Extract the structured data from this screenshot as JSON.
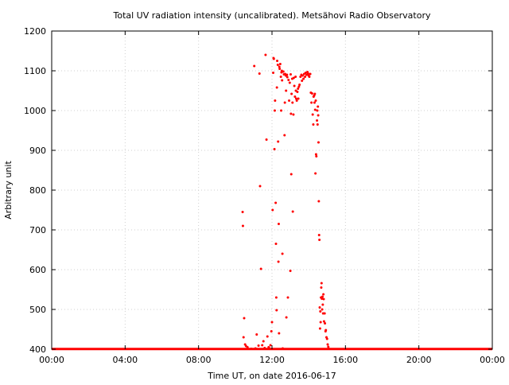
{
  "chart_data": {
    "type": "scatter",
    "title": "Total UV radiation intensity (uncalibrated). Metsähovi Radio Observatory",
    "xlabel": "Time UT, on date 2016-06-17",
    "ylabel": "Arbitrary unit",
    "xlim": [
      "00:00",
      "24:00"
    ],
    "ylim": [
      400,
      1200
    ],
    "grid": true,
    "x_ticks": [
      "00:00",
      "04:00",
      "08:00",
      "12:00",
      "16:00",
      "20:00",
      "00:00"
    ],
    "y_ticks": [
      "400",
      "500",
      "600",
      "700",
      "800",
      "900",
      "1000",
      "1100",
      "1200"
    ],
    "marker_color": "#ff0000",
    "baseline": {
      "from": "00:00",
      "to": "24:00",
      "value": 400
    },
    "points": [
      [
        "10:24",
        745
      ],
      [
        "10:25",
        710
      ],
      [
        "10:27",
        430
      ],
      [
        "10:29",
        478
      ],
      [
        "10:32",
        412
      ],
      [
        "10:35",
        408
      ],
      [
        "10:40",
        405
      ],
      [
        "10:52",
        401
      ],
      [
        "11:02",
        1112
      ],
      [
        "11:06",
        402
      ],
      [
        "11:10",
        437
      ],
      [
        "11:16",
        409
      ],
      [
        "11:19",
        1093
      ],
      [
        "11:21",
        810
      ],
      [
        "11:24",
        602
      ],
      [
        "11:28",
        410
      ],
      [
        "11:32",
        420
      ],
      [
        "11:36",
        403
      ],
      [
        "11:39",
        1140
      ],
      [
        "11:42",
        927
      ],
      [
        "11:45",
        432
      ],
      [
        "11:49",
        405
      ],
      [
        "11:52",
        402
      ],
      [
        "11:55",
        410
      ],
      [
        "11:58",
        445
      ],
      [
        "12:00",
        468
      ],
      [
        "12:02",
        750
      ],
      [
        "12:04",
        1095
      ],
      [
        "12:05",
        1132
      ],
      [
        "12:06",
        1130
      ],
      [
        "12:08",
        903
      ],
      [
        "12:09",
        1000
      ],
      [
        "12:10",
        1025
      ],
      [
        "12:12",
        768
      ],
      [
        "12:13",
        665
      ],
      [
        "12:14",
        530
      ],
      [
        "12:15",
        498
      ],
      [
        "12:16",
        1058
      ],
      [
        "12:17",
        1125
      ],
      [
        "12:19",
        1115
      ],
      [
        "12:20",
        922
      ],
      [
        "12:21",
        620
      ],
      [
        "12:22",
        715
      ],
      [
        "12:23",
        440
      ],
      [
        "12:24",
        1110
      ],
      [
        "12:25",
        1105
      ],
      [
        "12:27",
        1117
      ],
      [
        "12:29",
        1085
      ],
      [
        "12:30",
        1000
      ],
      [
        "12:31",
        1096
      ],
      [
        "12:32",
        1100
      ],
      [
        "12:33",
        1076
      ],
      [
        "12:34",
        640
      ],
      [
        "12:35",
        402
      ],
      [
        "12:37",
        1098
      ],
      [
        "12:39",
        1091
      ],
      [
        "12:41",
        938
      ],
      [
        "12:42",
        1020
      ],
      [
        "12:43",
        1092
      ],
      [
        "12:45",
        1088
      ],
      [
        "12:46",
        1050
      ],
      [
        "12:47",
        480
      ],
      [
        "12:49",
        1090
      ],
      [
        "12:50",
        1084
      ],
      [
        "12:52",
        530
      ],
      [
        "12:54",
        1077
      ],
      [
        "12:56",
        1025
      ],
      [
        "12:58",
        1070
      ],
      [
        "13:00",
        597
      ],
      [
        "13:01",
        1091
      ],
      [
        "13:02",
        992
      ],
      [
        "13:03",
        840
      ],
      [
        "13:04",
        1042
      ],
      [
        "13:06",
        1080
      ],
      [
        "13:07",
        1020
      ],
      [
        "13:08",
        746
      ],
      [
        "13:10",
        990
      ],
      [
        "13:11",
        1082
      ],
      [
        "13:13",
        1062
      ],
      [
        "13:15",
        1035
      ],
      [
        "13:17",
        1085
      ],
      [
        "13:18",
        1050
      ],
      [
        "13:19",
        1030
      ],
      [
        "13:21",
        1025
      ],
      [
        "13:23",
        1047
      ],
      [
        "13:25",
        1055
      ],
      [
        "13:26",
        1030
      ],
      [
        "13:28",
        1060
      ],
      [
        "13:30",
        1065
      ],
      [
        "13:33",
        1085
      ],
      [
        "13:36",
        1090
      ],
      [
        "13:38",
        1075
      ],
      [
        "13:40",
        1088
      ],
      [
        "13:43",
        1080
      ],
      [
        "13:45",
        1092
      ],
      [
        "13:48",
        1085
      ],
      [
        "13:50",
        1095
      ],
      [
        "13:53",
        1090
      ],
      [
        "13:56",
        1097
      ],
      [
        "13:58",
        1093
      ],
      [
        "14:00",
        1088
      ],
      [
        "14:02",
        1085
      ],
      [
        "14:05",
        1092
      ],
      [
        "14:07",
        1045
      ],
      [
        "14:09",
        1020
      ],
      [
        "14:11",
        1043
      ],
      [
        "14:13",
        990
      ],
      [
        "14:15",
        965
      ],
      [
        "14:16",
        1035
      ],
      [
        "14:18",
        1038
      ],
      [
        "14:19",
        1020
      ],
      [
        "14:20",
        1042
      ],
      [
        "14:21",
        1002
      ],
      [
        "14:22",
        842
      ],
      [
        "14:23",
        1025
      ],
      [
        "14:24",
        890
      ],
      [
        "14:25",
        885
      ],
      [
        "14:27",
        975
      ],
      [
        "14:28",
        1000
      ],
      [
        "14:29",
        965
      ],
      [
        "14:30",
        1010
      ],
      [
        "14:31",
        988
      ],
      [
        "14:32",
        920
      ],
      [
        "14:33",
        772
      ],
      [
        "14:34",
        687
      ],
      [
        "14:35",
        675
      ],
      [
        "14:36",
        505
      ],
      [
        "14:37",
        452
      ],
      [
        "14:38",
        495
      ],
      [
        "14:39",
        468
      ],
      [
        "14:40",
        530
      ],
      [
        "14:41",
        555
      ],
      [
        "14:42",
        566
      ],
      [
        "14:43",
        527
      ],
      [
        "14:44",
        500
      ],
      [
        "14:45",
        532
      ],
      [
        "14:46",
        512
      ],
      [
        "14:47",
        490
      ],
      [
        "14:48",
        538
      ],
      [
        "14:49",
        526
      ],
      [
        "14:50",
        470
      ],
      [
        "14:52",
        490
      ],
      [
        "14:53",
        465
      ],
      [
        "14:55",
        445
      ],
      [
        "14:56",
        448
      ],
      [
        "14:58",
        430
      ],
      [
        "15:00",
        426
      ],
      [
        "15:02",
        412
      ],
      [
        "15:04",
        406
      ],
      [
        "15:06",
        401
      ]
    ]
  }
}
